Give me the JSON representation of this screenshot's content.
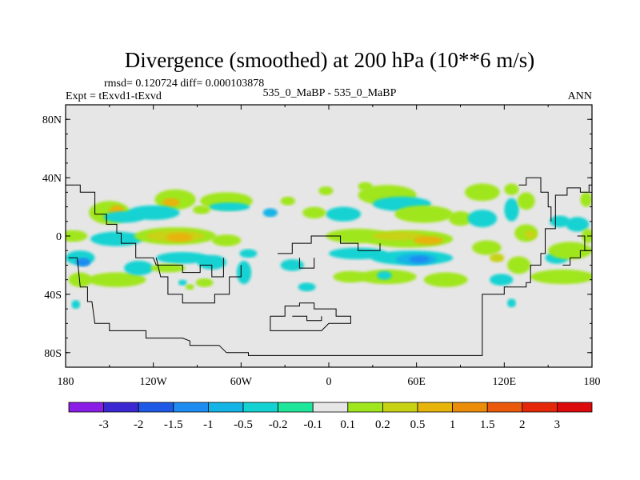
{
  "chart_data": {
    "type": "heatmap",
    "title": "Divergence (smoothed) at 200 hPa (10**6 m/s)",
    "stats_text": "rmsd= 0.120724 diff= 0.000103878",
    "left_label": "Expt = tExvd1-tExvd",
    "center_label": "535_0_MaBP - 535_0_MaBP",
    "right_label": "ANN",
    "xlim": [
      -180,
      180
    ],
    "ylim": [
      -90,
      90
    ],
    "x_ticks": [
      {
        "value": -180,
        "label": "180"
      },
      {
        "value": -120,
        "label": "120W"
      },
      {
        "value": -60,
        "label": "60W"
      },
      {
        "value": 0,
        "label": "0"
      },
      {
        "value": 60,
        "label": "60E"
      },
      {
        "value": 120,
        "label": "120E"
      },
      {
        "value": 180,
        "label": "180"
      }
    ],
    "y_ticks": [
      {
        "value": 80,
        "label": "80N"
      },
      {
        "value": 40,
        "label": "40N"
      },
      {
        "value": 0,
        "label": "0"
      },
      {
        "value": -40,
        "label": "40S"
      },
      {
        "value": -80,
        "label": "80S"
      }
    ],
    "colorbar": {
      "labels": [
        "-3",
        "-2",
        "-1.5",
        "-1",
        "-0.5",
        "-0.2",
        "-0.1",
        "0.1",
        "0.2",
        "0.5",
        "1",
        "1.5",
        "2",
        "3"
      ],
      "colors": [
        "#8a1ee6",
        "#3c28d2",
        "#1e5ae6",
        "#1e8cf0",
        "#14b4e6",
        "#14d2d2",
        "#1ee69b",
        "#e6e6e6",
        "#a0e61e",
        "#c8d214",
        "#e6b40a",
        "#eb8c0a",
        "#eb5a0a",
        "#e6280a",
        "#dc0a0a"
      ]
    },
    "background_color": "#e6e6e6",
    "blobs": [
      {
        "lon": -150,
        "lat": 16,
        "rx": 14,
        "ry": 8,
        "level": 8
      },
      {
        "lon": -145,
        "lat": 17,
        "rx": 5,
        "ry": 4,
        "level": 10
      },
      {
        "lon": -140,
        "lat": 13,
        "rx": 14,
        "ry": 4,
        "level": 5
      },
      {
        "lon": -105,
        "lat": 25,
        "rx": 14,
        "ry": 7,
        "level": 8
      },
      {
        "lon": -108,
        "lat": 23,
        "rx": 6,
        "ry": 3,
        "level": 10
      },
      {
        "lon": -120,
        "lat": 16,
        "rx": 18,
        "ry": 5,
        "level": 5
      },
      {
        "lon": -70,
        "lat": 24,
        "rx": 18,
        "ry": 6,
        "level": 8
      },
      {
        "lon": -68,
        "lat": 20,
        "rx": 14,
        "ry": 3,
        "level": 5
      },
      {
        "lon": -87,
        "lat": 18,
        "rx": 6,
        "ry": 3,
        "level": 8
      },
      {
        "lon": -28,
        "lat": 24,
        "rx": 5,
        "ry": 3,
        "level": 8
      },
      {
        "lon": -175,
        "lat": 0,
        "rx": 10,
        "ry": 4,
        "level": 8
      },
      {
        "lon": -145,
        "lat": -2,
        "rx": 18,
        "ry": 5,
        "level": 5
      },
      {
        "lon": -105,
        "lat": 0,
        "rx": 28,
        "ry": 6,
        "level": 8
      },
      {
        "lon": -105,
        "lat": 0,
        "rx": 20,
        "ry": 4,
        "level": 9
      },
      {
        "lon": -102,
        "lat": -1,
        "rx": 9,
        "ry": 3,
        "level": 10
      },
      {
        "lon": -70,
        "lat": -3,
        "rx": 10,
        "ry": 4,
        "level": 8
      },
      {
        "lon": -55,
        "lat": -12,
        "rx": 6,
        "ry": 3,
        "level": 5
      },
      {
        "lon": -40,
        "lat": 16,
        "rx": 5,
        "ry": 3,
        "level": 4
      },
      {
        "lon": -170,
        "lat": -15,
        "rx": 10,
        "ry": 5,
        "level": 5
      },
      {
        "lon": -168,
        "lat": -18,
        "rx": 5,
        "ry": 3,
        "level": 3
      },
      {
        "lon": -170,
        "lat": -30,
        "rx": 8,
        "ry": 5,
        "level": 8
      },
      {
        "lon": -145,
        "lat": -30,
        "rx": 20,
        "ry": 5,
        "level": 8
      },
      {
        "lon": -130,
        "lat": -22,
        "rx": 10,
        "ry": 5,
        "level": 5
      },
      {
        "lon": -100,
        "lat": -15,
        "rx": 18,
        "ry": 4,
        "level": 5
      },
      {
        "lon": -110,
        "lat": -22,
        "rx": 12,
        "ry": 3,
        "level": 8
      },
      {
        "lon": -80,
        "lat": -18,
        "rx": 10,
        "ry": 5,
        "level": 5
      },
      {
        "lon": -58,
        "lat": -25,
        "rx": 5,
        "ry": 8,
        "level": 5
      },
      {
        "lon": -85,
        "lat": -32,
        "rx": 6,
        "ry": 3,
        "level": 8
      },
      {
        "lon": -25,
        "lat": -20,
        "rx": 8,
        "ry": 4,
        "level": 5
      },
      {
        "lon": -15,
        "lat": -35,
        "rx": 6,
        "ry": 3,
        "level": 5
      },
      {
        "lon": 40,
        "lat": 28,
        "rx": 20,
        "ry": 7,
        "level": 8
      },
      {
        "lon": 25,
        "lat": 34,
        "rx": 5,
        "ry": 3,
        "level": 8
      },
      {
        "lon": -2,
        "lat": 31,
        "rx": 5,
        "ry": 3,
        "level": 8
      },
      {
        "lon": 10,
        "lat": 15,
        "rx": 12,
        "ry": 5,
        "level": 5
      },
      {
        "lon": -10,
        "lat": 16,
        "rx": 8,
        "ry": 4,
        "level": 8
      },
      {
        "lon": 50,
        "lat": 22,
        "rx": 20,
        "ry": 5,
        "level": 5
      },
      {
        "lon": 65,
        "lat": 15,
        "rx": 20,
        "ry": 6,
        "level": 8
      },
      {
        "lon": 90,
        "lat": 12,
        "rx": 8,
        "ry": 5,
        "level": 8
      },
      {
        "lon": 105,
        "lat": 30,
        "rx": 12,
        "ry": 6,
        "level": 8
      },
      {
        "lon": 105,
        "lat": 12,
        "rx": 10,
        "ry": 6,
        "level": 5
      },
      {
        "lon": 125,
        "lat": 32,
        "rx": 5,
        "ry": 4,
        "level": 8
      },
      {
        "lon": 125,
        "lat": 18,
        "rx": 5,
        "ry": 8,
        "level": 5
      },
      {
        "lon": 135,
        "lat": 24,
        "rx": 6,
        "ry": 6,
        "level": 8
      },
      {
        "lon": 135,
        "lat": 2,
        "rx": 8,
        "ry": 6,
        "level": 8
      },
      {
        "lon": 138,
        "lat": 1,
        "rx": 4,
        "ry": 3,
        "level": 9
      },
      {
        "lon": 158,
        "lat": 10,
        "rx": 7,
        "ry": 4,
        "level": 5
      },
      {
        "lon": 170,
        "lat": 8,
        "rx": 8,
        "ry": 5,
        "level": 5
      },
      {
        "lon": 176,
        "lat": 25,
        "rx": 4,
        "ry": 5,
        "level": 8
      },
      {
        "lon": 177,
        "lat": 0,
        "rx": 4,
        "ry": 5,
        "level": 8
      },
      {
        "lon": 156,
        "lat": -15,
        "rx": 8,
        "ry": 4,
        "level": 5
      },
      {
        "lon": 165,
        "lat": -10,
        "rx": 15,
        "ry": 6,
        "level": 8
      },
      {
        "lon": 160,
        "lat": -28,
        "rx": 22,
        "ry": 5,
        "level": 8
      },
      {
        "lon": 130,
        "lat": -20,
        "rx": 8,
        "ry": 6,
        "level": 8
      },
      {
        "lon": 118,
        "lat": -30,
        "rx": 8,
        "ry": 4,
        "level": 5
      },
      {
        "lon": 125,
        "lat": -46,
        "rx": 3,
        "ry": 3,
        "level": 5
      },
      {
        "lon": 20,
        "lat": 0,
        "rx": 22,
        "ry": 5,
        "level": 8
      },
      {
        "lon": 55,
        "lat": -2,
        "rx": 30,
        "ry": 6,
        "level": 8
      },
      {
        "lon": 48,
        "lat": 0,
        "rx": 18,
        "ry": 3,
        "level": 9
      },
      {
        "lon": 68,
        "lat": -3,
        "rx": 10,
        "ry": 3,
        "level": 10
      },
      {
        "lon": 108,
        "lat": -8,
        "rx": 10,
        "ry": 5,
        "level": 8
      },
      {
        "lon": 115,
        "lat": -15,
        "rx": 5,
        "ry": 3,
        "level": 9
      },
      {
        "lon": 20,
        "lat": -12,
        "rx": 20,
        "ry": 4,
        "level": 5
      },
      {
        "lon": 57,
        "lat": -15,
        "rx": 28,
        "ry": 5,
        "level": 5
      },
      {
        "lon": 60,
        "lat": -16,
        "rx": 14,
        "ry": 4,
        "level": 4
      },
      {
        "lon": 62,
        "lat": -16,
        "rx": 7,
        "ry": 2.5,
        "level": 3
      },
      {
        "lon": 80,
        "lat": -30,
        "rx": 15,
        "ry": 5,
        "level": 8
      },
      {
        "lon": 40,
        "lat": -28,
        "rx": 20,
        "ry": 5,
        "level": 8
      },
      {
        "lon": 15,
        "lat": -28,
        "rx": 12,
        "ry": 4,
        "level": 8
      },
      {
        "lon": 38,
        "lat": -27,
        "rx": 5,
        "ry": 3,
        "level": 5
      },
      {
        "lon": -173,
        "lat": -47,
        "rx": 3,
        "ry": 3,
        "level": 5
      },
      {
        "lon": -100,
        "lat": -32,
        "rx": 3,
        "ry": 2,
        "level": 5
      },
      {
        "lon": -95,
        "lat": -35,
        "rx": 3,
        "ry": 2,
        "level": 8
      }
    ],
    "coast_segments": [
      [
        [
          -180,
          35
        ],
        [
          -170,
          35
        ],
        [
          -170,
          30
        ],
        [
          -160,
          30
        ],
        [
          -160,
          15
        ],
        [
          -152,
          15
        ],
        [
          -152,
          8
        ],
        [
          -145,
          8
        ],
        [
          -145,
          2
        ],
        [
          -142,
          2
        ],
        [
          -142,
          -5
        ],
        [
          -132,
          -5
        ],
        [
          -132,
          -15
        ],
        [
          -120,
          -15
        ],
        [
          -118,
          -20
        ],
        [
          -100,
          -20
        ],
        [
          -100,
          -25
        ],
        [
          -88,
          -25
        ],
        [
          -88,
          -20
        ],
        [
          -80,
          -20
        ],
        [
          -80,
          -28
        ],
        [
          -72,
          -28
        ],
        [
          -72,
          -15
        ]
      ],
      [
        [
          -118,
          -15
        ],
        [
          -115,
          -28
        ],
        [
          -110,
          -28
        ],
        [
          -110,
          -40
        ],
        [
          -100,
          -40
        ],
        [
          -100,
          -46
        ],
        [
          -78,
          -46
        ],
        [
          -78,
          -40
        ],
        [
          -68,
          -40
        ],
        [
          -68,
          -28
        ],
        [
          -60,
          -28
        ],
        [
          -60,
          -20
        ]
      ],
      [
        [
          -178,
          -15
        ],
        [
          -172,
          -15
        ],
        [
          -170,
          -35
        ],
        [
          -165,
          -35
        ],
        [
          -165,
          -45
        ],
        [
          -162,
          -45
        ],
        [
          -160,
          -60
        ],
        [
          -150,
          -60
        ],
        [
          -150,
          -65
        ],
        [
          -125,
          -65
        ],
        [
          -125,
          -70
        ],
        [
          -100,
          -70
        ],
        [
          -95,
          -72
        ],
        [
          -95,
          -75
        ],
        [
          -75,
          -75
        ],
        [
          -70,
          -80
        ],
        [
          -55,
          -80
        ],
        [
          -55,
          -82
        ],
        [
          105,
          -82
        ],
        [
          105,
          -40
        ],
        [
          120,
          -40
        ],
        [
          120,
          -35
        ],
        [
          135,
          -35
        ],
        [
          135,
          -32
        ],
        [
          138,
          -32
        ],
        [
          138,
          -20
        ],
        [
          145,
          -20
        ],
        [
          145,
          -12
        ],
        [
          148,
          -12
        ],
        [
          148,
          5
        ],
        [
          155,
          5
        ],
        [
          155,
          28
        ],
        [
          163,
          28
        ],
        [
          163,
          33
        ],
        [
          172,
          33
        ],
        [
          172,
          30
        ],
        [
          178,
          30
        ],
        [
          178,
          35
        ],
        [
          180,
          35
        ]
      ],
      [
        [
          -35,
          -12
        ],
        [
          -25,
          -12
        ],
        [
          -25,
          -5
        ],
        [
          -12,
          -5
        ],
        [
          -12,
          0
        ],
        [
          8,
          0
        ],
        [
          8,
          -5
        ],
        [
          20,
          -5
        ],
        [
          20,
          -10
        ],
        [
          35,
          -10
        ],
        [
          35,
          -5
        ]
      ],
      [
        [
          -20,
          -15
        ],
        [
          -20,
          -22
        ],
        [
          -10,
          -22
        ],
        [
          -10,
          -15
        ]
      ],
      [
        [
          -40,
          -55
        ],
        [
          -30,
          -55
        ],
        [
          -30,
          -48
        ],
        [
          -20,
          -48
        ],
        [
          -20,
          -46
        ],
        [
          -10,
          -46
        ],
        [
          -10,
          -50
        ],
        [
          5,
          -50
        ],
        [
          5,
          -55
        ],
        [
          15,
          -55
        ],
        [
          15,
          -60
        ],
        [
          0,
          -60
        ],
        [
          -5,
          -65
        ],
        [
          -40,
          -65
        ],
        [
          -40,
          -55
        ]
      ],
      [
        [
          -25,
          -55
        ],
        [
          -15,
          -55
        ],
        [
          -15,
          -58
        ],
        [
          -5,
          -58
        ],
        [
          -5,
          -55
        ]
      ],
      [
        [
          130,
          35
        ],
        [
          135,
          35
        ],
        [
          135,
          40
        ],
        [
          145,
          40
        ],
        [
          145,
          30
        ],
        [
          150,
          30
        ],
        [
          150,
          20
        ],
        [
          152,
          20
        ],
        [
          152,
          10
        ]
      ],
      [
        [
          170,
          0
        ],
        [
          175,
          0
        ],
        [
          175,
          -10
        ],
        [
          180,
          -10
        ]
      ],
      [
        [
          160,
          -20
        ],
        [
          165,
          -20
        ],
        [
          165,
          -15
        ],
        [
          172,
          -15
        ],
        [
          172,
          -10
        ],
        [
          178,
          -10
        ]
      ]
    ]
  }
}
